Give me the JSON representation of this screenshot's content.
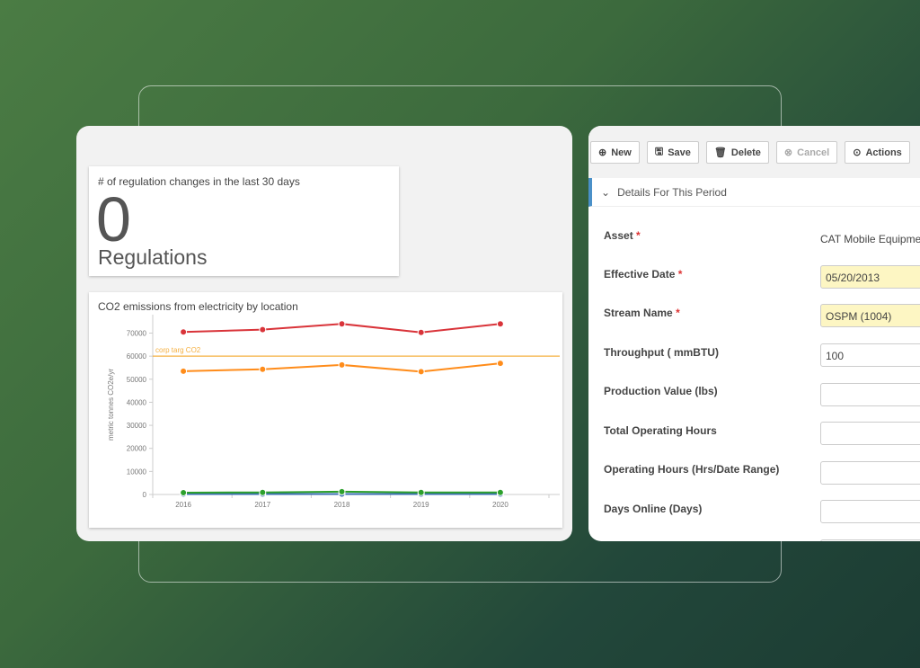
{
  "regulations": {
    "title": "# of regulation changes in the last 30 days",
    "count": "0",
    "unit": "Regulations"
  },
  "chart_data": {
    "type": "line",
    "title": "CO2 emissions from electricity by location",
    "ylabel": "metric tonnes CO2e/yr",
    "xlabel": "",
    "categories": [
      "2016",
      "2017",
      "2018",
      "2019",
      "2020"
    ],
    "ylim": [
      0,
      78000
    ],
    "yticks": [
      0,
      10000,
      20000,
      30000,
      40000,
      50000,
      60000,
      70000
    ],
    "series": [
      {
        "color": "#d9343a",
        "values": [
          70500,
          71500,
          74000,
          70300,
          74000
        ]
      },
      {
        "color": "#ff8c1a",
        "values": [
          53500,
          54300,
          56200,
          53300,
          56900
        ]
      },
      {
        "color": "#2ca02c",
        "values": [
          800,
          900,
          1200,
          900,
          900
        ]
      },
      {
        "color": "#3a6fb0",
        "values": [
          200,
          200,
          200,
          200,
          200
        ]
      }
    ],
    "reference_line": {
      "label": "corp targ CO2",
      "value": 60000,
      "color": "#f5b041"
    }
  },
  "toolbar": {
    "new": "New",
    "save": "Save",
    "delete": "Delete",
    "cancel": "Cancel",
    "actions": "Actions"
  },
  "section": {
    "title": "Details For This Period"
  },
  "form": {
    "asset_label": "Asset",
    "asset_value": "CAT Mobile Equipme",
    "date_label": "Effective Date",
    "date_value": "05/20/2013",
    "stream_label": "Stream Name",
    "stream_value": "OSPM (1004)",
    "throughput_label": "Throughput ( mmBTU)",
    "throughput_value": "100",
    "production_label": "Production Value (lbs)",
    "total_hours_label": "Total Operating Hours",
    "op_hours_label": "Operating Hours (Hrs/Date Range)",
    "days_label": "Days Online (Days)",
    "required_mark": "*"
  }
}
